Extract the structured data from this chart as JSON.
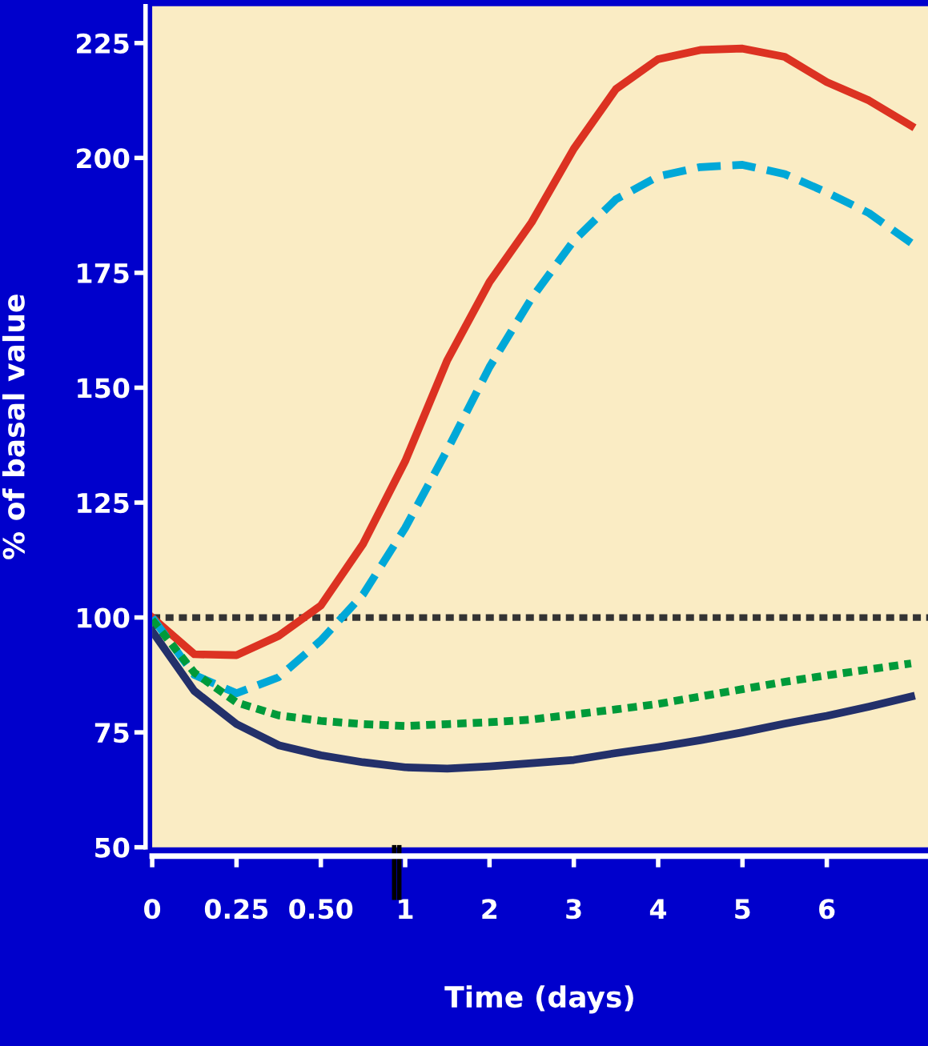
{
  "chart_data": {
    "type": "line",
    "xlabel": "Time (days)",
    "ylabel": "% of basal value",
    "categories": [
      "0",
      null,
      "0.25",
      null,
      "0.50",
      null,
      "1",
      null,
      "2",
      null,
      "3",
      null,
      "4",
      null,
      "5",
      null,
      "6",
      null,
      null
    ],
    "series": [
      {
        "color": "#dc3222",
        "line_style": "solid",
        "values": [
          100,
          92,
          91.8,
          96,
          102.6,
          116,
          134,
          156,
          173,
          186,
          202,
          215,
          221.5,
          223.5,
          223.8,
          222,
          216.5,
          212.5,
          207
        ]
      },
      {
        "color": "#00a8d8",
        "line_style": "dashed",
        "values": [
          100,
          87.5,
          83.5,
          87,
          95,
          105,
          119.5,
          136.5,
          154.5,
          169.5,
          182,
          191,
          196,
          198,
          198.5,
          196.5,
          192.5,
          188,
          181.5
        ]
      },
      {
        "color": "#009a3a",
        "line_style": "dotted",
        "values": [
          99.5,
          88,
          81.5,
          78.7,
          77.5,
          76.8,
          76.4,
          76.8,
          77.2,
          77.8,
          78.9,
          80,
          81.2,
          82.8,
          84.4,
          86,
          87.4,
          88.7,
          90
        ]
      },
      {
        "color": "#23306a",
        "line_style": "solid",
        "values": [
          97,
          84,
          76.8,
          72.2,
          70,
          68.5,
          67.4,
          67.1,
          67.6,
          68.3,
          69,
          70.5,
          71.8,
          73.3,
          75,
          76.9,
          78.6,
          80.6,
          82.8
        ]
      }
    ],
    "ylim": [
      50,
      233
    ],
    "yticks": [
      50,
      75,
      100,
      125,
      150,
      175,
      200,
      225
    ],
    "ref_lines": [
      {
        "axis": "y",
        "value": 100,
        "color": "#333333",
        "line_style": "dotted"
      }
    ],
    "grid": false,
    "legend": false,
    "marker": "none"
  }
}
